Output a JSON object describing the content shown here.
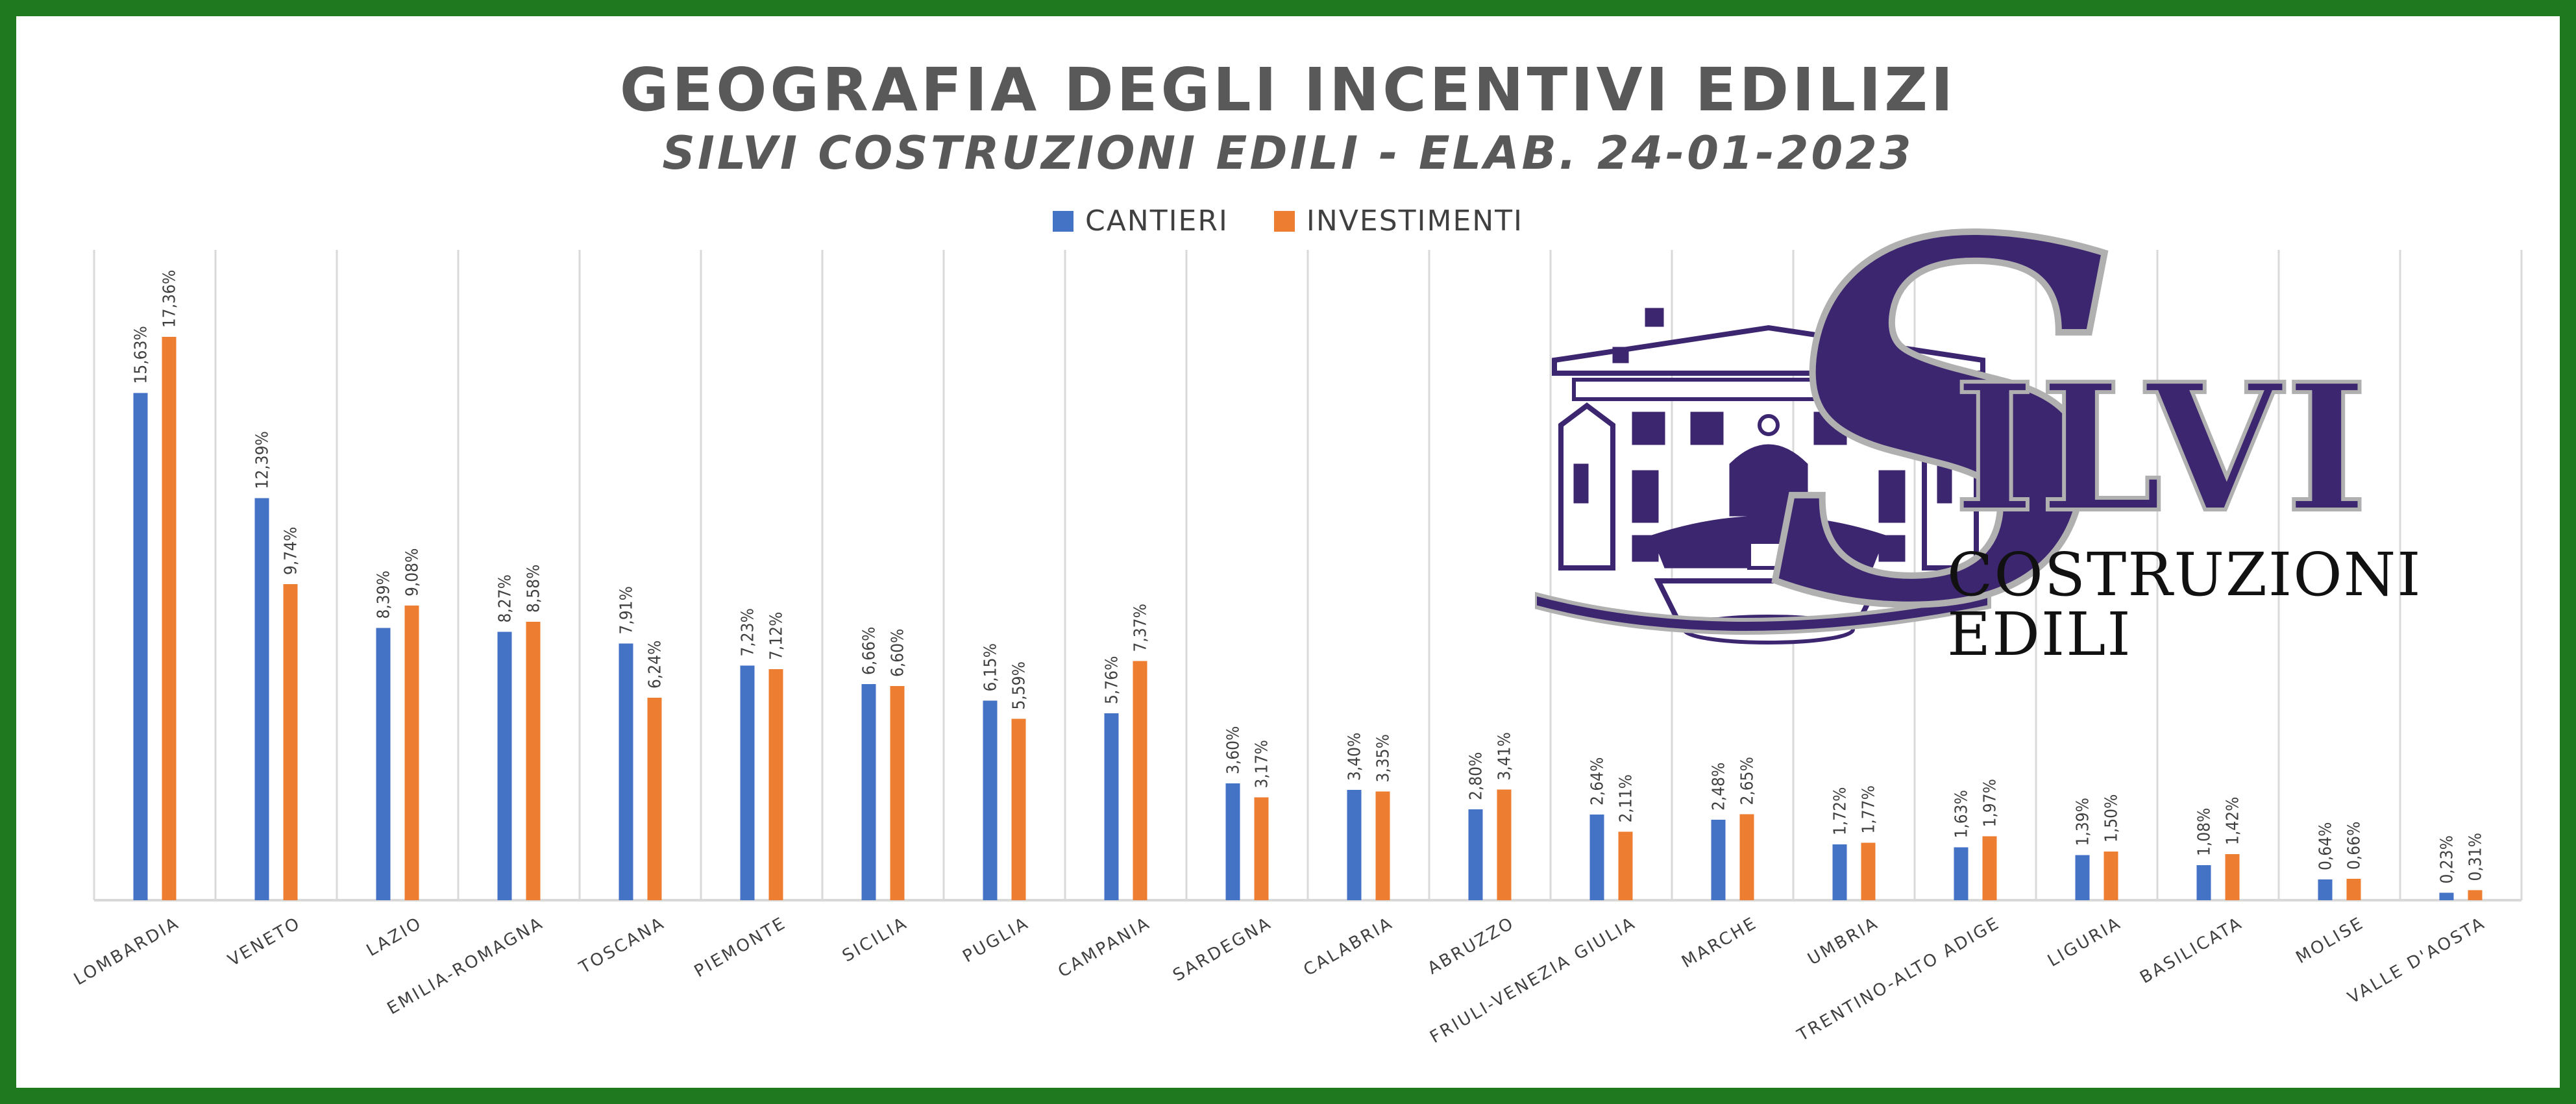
{
  "chart_data": {
    "type": "bar",
    "title": "GEOGRAFIA DEGLI INCENTIVI EDILIZI",
    "subtitle": "SILVI COSTRUZIONI EDILI - ELAB. 24-01-2023",
    "categories": [
      "LOMBARDIA",
      "VENETO",
      "LAZIO",
      "EMILIA-ROMAGNA",
      "TOSCANA",
      "PIEMONTE",
      "SICILIA",
      "PUGLIA",
      "CAMPANIA",
      "SARDEGNA",
      "CALABRIA",
      "ABRUZZO",
      "FRIULI-VENEZIA GIULIA",
      "MARCHE",
      "UMBRIA",
      "TRENTINO-ALTO ADIGE",
      "LIGURIA",
      "BASILICATA",
      "MOLISE",
      "VALLE D'AOSTA"
    ],
    "series": [
      {
        "name": "CANTIERI",
        "color": "#4472c4",
        "values": [
          15.63,
          12.39,
          8.39,
          8.27,
          7.91,
          7.23,
          6.66,
          6.15,
          5.76,
          3.6,
          3.4,
          2.8,
          2.64,
          2.48,
          1.72,
          1.63,
          1.39,
          1.08,
          0.64,
          0.23
        ],
        "labels": [
          "15,63%",
          "12,39%",
          "8,39%",
          "8,27%",
          "7,91%",
          "7,23%",
          "6,66%",
          "6,15%",
          "5,76%",
          "3,60%",
          "3,40%",
          "2,80%",
          "2,64%",
          "2,48%",
          "1,72%",
          "1,63%",
          "1,39%",
          "1,08%",
          "0,64%",
          "0,23%"
        ]
      },
      {
        "name": "INVESTIMENTI",
        "color": "#ed7d31",
        "values": [
          17.36,
          9.74,
          9.08,
          8.58,
          6.24,
          7.12,
          6.6,
          5.59,
          7.37,
          3.17,
          3.35,
          3.41,
          2.11,
          2.65,
          1.77,
          1.97,
          1.5,
          1.42,
          0.66,
          0.31
        ],
        "labels": [
          "17,36%",
          "9,74%",
          "9,08%",
          "8,58%",
          "6,24%",
          "7,12%",
          "6,60%",
          "5,59%",
          "7,37%",
          "3,17%",
          "3,35%",
          "3,41%",
          "2,11%",
          "2,65%",
          "1,77%",
          "1,97%",
          "1,50%",
          "1,42%",
          "0,66%",
          "0,31%"
        ]
      }
    ],
    "ylim": [
      0,
      20
    ],
    "xlabel": "",
    "ylabel": "",
    "grid": true,
    "legend_position": "top-center"
  },
  "logo": {
    "initial": "S",
    "word": "ILVI",
    "tagline": "COSTRUZIONI EDILI",
    "primary_color": "#3d2670",
    "outline_color": "#b0b0b0"
  },
  "frame_color": "#1f7a1f"
}
